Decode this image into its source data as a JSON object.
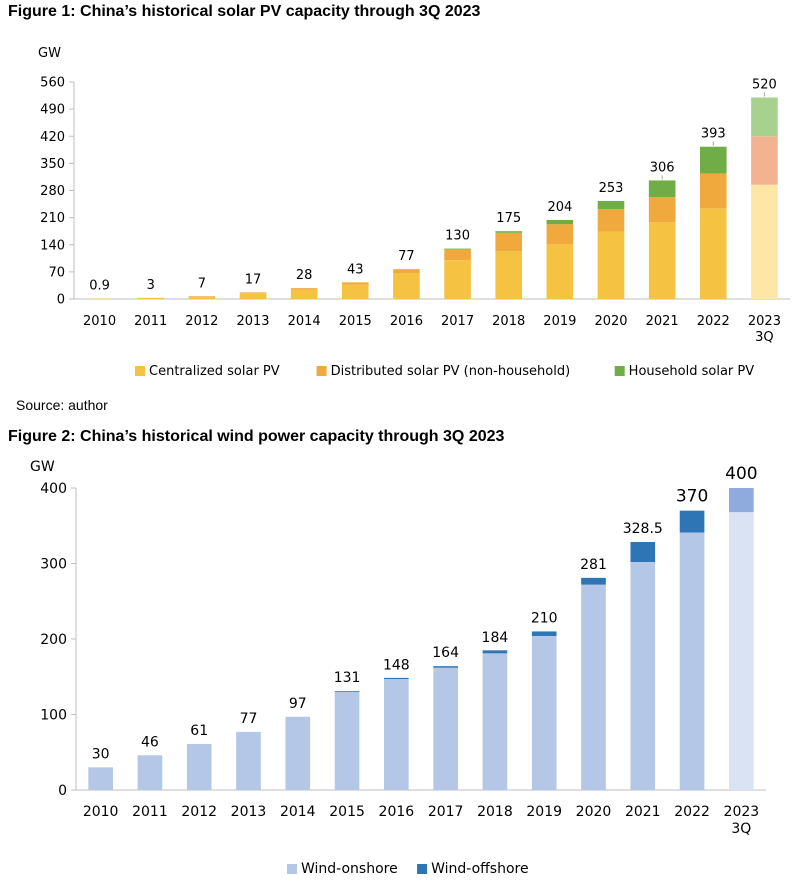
{
  "figure1": {
    "title": "Figure 1: China’s historical solar PV capacity through 3Q 2023",
    "source": "Source: author"
  },
  "figure2": {
    "title": "Figure 2: China’s historical wind power capacity through 3Q 2023"
  },
  "colors": {
    "centralized": "#F5C242",
    "distributed": "#F0A93C",
    "household": "#70AD47",
    "centralized_3q": "#FDE6A6",
    "distributed_3q": "#F3B391",
    "household_3q": "#A9D18E",
    "onshore": "#B4C7E7",
    "offshore": "#2E75B6",
    "onshore_3q": "#DAE3F3",
    "offshore_3q": "#8FAADC",
    "axis": "#BFBFBF"
  },
  "chart_data": [
    {
      "type": "bar",
      "stacked": true,
      "unit_label": "GW",
      "categories": [
        "2010",
        "2011",
        "2012",
        "2013",
        "2014",
        "2015",
        "2016",
        "2017",
        "2018",
        "2019",
        "2020",
        "2021",
        "2022",
        "2023\n3Q"
      ],
      "series": [
        {
          "name": "Centralized solar PV",
          "values": [
            0.9,
            3,
            5,
            15,
            24,
            37,
            67,
            100,
            123,
            141,
            174,
            198,
            234,
            295
          ]
        },
        {
          "name": "Distributed solar PV (non-household)",
          "values": [
            0,
            0,
            2,
            2,
            4,
            6,
            10,
            28,
            48,
            52,
            58,
            65,
            90,
            125
          ]
        },
        {
          "name": "Household solar PV",
          "values": [
            0,
            0,
            0,
            0,
            0,
            0,
            0,
            2,
            4,
            11,
            21,
            43,
            69,
            100
          ]
        }
      ],
      "totals": [
        0.9,
        3,
        7,
        17,
        28,
        43,
        77,
        130,
        175,
        204,
        253,
        306,
        393,
        520
      ],
      "total_labels": [
        "0.9",
        "3",
        "7",
        "17",
        "28",
        "43",
        "77",
        "130",
        "175",
        "204",
        "253",
        "306",
        "393",
        "520"
      ],
      "ylim": [
        0,
        560
      ],
      "yticks": [
        0,
        70,
        140,
        210,
        280,
        350,
        420,
        490,
        560
      ],
      "legend": "bottom"
    },
    {
      "type": "bar",
      "stacked": true,
      "unit_label": "GW",
      "categories": [
        "2010",
        "2011",
        "2012",
        "2013",
        "2014",
        "2015",
        "2016",
        "2017",
        "2018",
        "2019",
        "2020",
        "2021",
        "2022",
        "2023\n3Q"
      ],
      "series": [
        {
          "name": "Wind-onshore",
          "values": [
            30,
            46,
            61,
            77,
            97,
            130,
            147,
            162,
            181,
            204,
            272,
            302,
            341,
            368
          ]
        },
        {
          "name": "Wind-offshore",
          "values": [
            0,
            0,
            0,
            0,
            0,
            1,
            1.5,
            2,
            4,
            6,
            9,
            26.5,
            29,
            32
          ]
        }
      ],
      "totals": [
        30,
        46,
        61,
        77,
        97,
        131,
        148,
        164,
        184,
        210,
        281,
        328.5,
        370,
        400
      ],
      "total_labels": [
        "30",
        "46",
        "61",
        "77",
        "97",
        "131",
        "148",
        "164",
        "184",
        "210",
        "281",
        "328.5",
        "370",
        "400"
      ],
      "ylim": [
        0,
        400
      ],
      "yticks": [
        0,
        100,
        200,
        300,
        400
      ],
      "legend": "bottom"
    }
  ]
}
